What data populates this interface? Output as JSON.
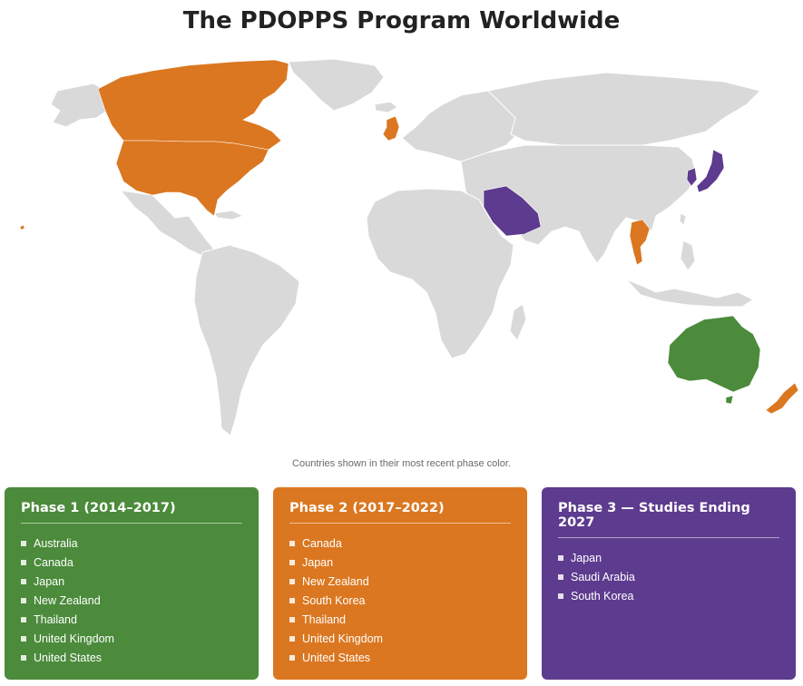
{
  "title": "The PDOPPS Program Worldwide",
  "caption": "Countries shown in their most recent phase color.",
  "colors": {
    "phase1": "#4b8b3b",
    "phase2": "#db7720",
    "phase3": "#5d3b8e",
    "no_data": "#d9d9d9"
  },
  "map": {
    "highlighted": [
      {
        "country": "Canada",
        "phase": "phase2"
      },
      {
        "country": "United States",
        "phase": "phase2"
      },
      {
        "country": "United Kingdom",
        "phase": "phase2"
      },
      {
        "country": "Thailand",
        "phase": "phase2"
      },
      {
        "country": "New Zealand",
        "phase": "phase2"
      },
      {
        "country": "Japan",
        "phase": "phase3"
      },
      {
        "country": "South Korea",
        "phase": "phase3"
      },
      {
        "country": "Saudi Arabia",
        "phase": "phase3"
      },
      {
        "country": "Australia",
        "phase": "phase1"
      }
    ]
  },
  "phases": [
    {
      "title": "Phase 1 (2014–2017)",
      "countries": [
        "Australia",
        "Canada",
        "Japan",
        "New Zealand",
        "Thailand",
        "United Kingdom",
        "United States"
      ]
    },
    {
      "title": "Phase 2 (2017–2022)",
      "countries": [
        "Canada",
        "Japan",
        "New Zealand",
        "South Korea",
        "Thailand",
        "United Kingdom",
        "United States"
      ]
    },
    {
      "title": "Phase 3 — Studies Ending 2027",
      "countries": [
        "Japan",
        "Saudi Arabia",
        "South Korea"
      ]
    }
  ]
}
